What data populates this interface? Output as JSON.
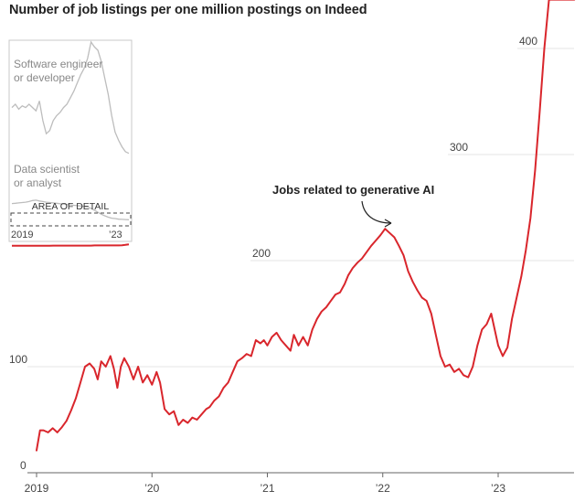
{
  "title": "Number of job listings per one million postings on Indeed",
  "chart_data": {
    "type": "line",
    "title": "Number of job listings per one million postings on Indeed",
    "xlabel": "",
    "ylabel": "",
    "ylim": [
      0,
      450
    ],
    "y_ticks": [
      {
        "value": 0,
        "label": "0"
      },
      {
        "value": 100,
        "label": "100"
      },
      {
        "value": 200,
        "label": "200"
      },
      {
        "value": 300,
        "label": "300"
      },
      {
        "value": 400,
        "label": "400"
      }
    ],
    "x_ticks": [
      {
        "value": 2019,
        "label": "2019"
      },
      {
        "value": 2020,
        "label": "’20"
      },
      {
        "value": 2021,
        "label": "’21"
      },
      {
        "value": 2022,
        "label": "’22"
      },
      {
        "value": 2023,
        "label": "’23"
      }
    ],
    "xlim": [
      2018.9,
      2023.72
    ],
    "grid": "horizontal",
    "color": "#d9262c",
    "annotation": {
      "text": "Jobs related to generative AI",
      "x": 2022.17,
      "y": 226
    },
    "series": [
      {
        "x": [
          2019.0,
          2019.03,
          2019.06,
          2019.1,
          2019.14,
          2019.18,
          2019.22,
          2019.26,
          2019.3,
          2019.34,
          2019.38,
          2019.42,
          2019.46,
          2019.5,
          2019.53,
          2019.56,
          2019.6,
          2019.64,
          2019.67,
          2019.7,
          2019.73,
          2019.76,
          2019.8,
          2019.84,
          2019.88,
          2019.92,
          2019.96,
          2020.0,
          2020.04,
          2020.07,
          2020.11,
          2020.15,
          2020.19,
          2020.23,
          2020.27,
          2020.31,
          2020.35,
          2020.39,
          2020.43,
          2020.47,
          2020.5,
          2020.54,
          2020.58,
          2020.62,
          2020.66,
          2020.7,
          2020.74,
          2020.78,
          2020.82,
          2020.86,
          2020.9,
          2020.94,
          2020.97,
          2021.0,
          2021.04,
          2021.08,
          2021.12,
          2021.16,
          2021.2,
          2021.23,
          2021.27,
          2021.31,
          2021.35,
          2021.39,
          2021.43,
          2021.47,
          2021.51,
          2021.55,
          2021.59,
          2021.63,
          2021.67,
          2021.7,
          2021.74,
          2021.78,
          2021.82,
          2021.86,
          2021.9,
          2021.94,
          2021.98,
          2022.02,
          2022.06,
          2022.1,
          2022.14,
          2022.18,
          2022.22,
          2022.26,
          2022.3,
          2022.34,
          2022.38,
          2022.42,
          2022.46,
          2022.5,
          2022.54,
          2022.58,
          2022.62,
          2022.66,
          2022.7,
          2022.74,
          2022.78,
          2022.82,
          2022.86,
          2022.9,
          2022.94,
          2022.97,
          2023.0,
          2023.04,
          2023.08,
          2023.12,
          2023.16,
          2023.2,
          2023.24,
          2023.28,
          2023.32,
          2023.36,
          2023.4,
          2023.44,
          2023.48,
          2023.52,
          2023.56,
          2023.6,
          2023.62,
          2023.64,
          2023.66
        ],
        "values": [
          21,
          40,
          40,
          38,
          42,
          38,
          43,
          49,
          59,
          70,
          85,
          100,
          103,
          98,
          88,
          105,
          100,
          110,
          98,
          80,
          100,
          108,
          100,
          88,
          100,
          85,
          92,
          83,
          95,
          85,
          60,
          55,
          58,
          45,
          50,
          47,
          52,
          50,
          55,
          60,
          62,
          68,
          72,
          80,
          85,
          95,
          105,
          108,
          112,
          110,
          125,
          122,
          125,
          120,
          128,
          132,
          125,
          120,
          115,
          130,
          120,
          128,
          120,
          135,
          145,
          152,
          156,
          162,
          168,
          170,
          178,
          186,
          193,
          198,
          202,
          208,
          214,
          219,
          224,
          230,
          226,
          222,
          214,
          205,
          190,
          180,
          172,
          165,
          162,
          150,
          130,
          110,
          100,
          102,
          95,
          98,
          92,
          90,
          100,
          120,
          135,
          140,
          150,
          135,
          120,
          110,
          118,
          145,
          165,
          185,
          210,
          240,
          285,
          340,
          400,
          446,
          446,
          446,
          446,
          446,
          446,
          446,
          446
        ],
        "name": ""
      }
    ]
  },
  "inset": {
    "label_a_line1": "Software engineer",
    "label_a_line2": "or developer",
    "label_b_line1": "Data scientist",
    "label_b_line2": "or analyst",
    "area_label": "AREA OF DETAIL",
    "tick_left": "2019",
    "tick_right": "’23",
    "software_engineer": [
      0.6,
      0.62,
      0.59,
      0.61,
      0.6,
      0.62,
      0.6,
      0.58,
      0.64,
      0.52,
      0.44,
      0.46,
      0.52,
      0.55,
      0.57,
      0.6,
      0.62,
      0.66,
      0.7,
      0.75,
      0.8,
      0.84,
      0.9,
      1.0,
      0.97,
      0.95,
      0.88,
      0.78,
      0.68,
      0.55,
      0.45,
      0.4,
      0.36,
      0.33,
      0.32
    ],
    "data_scientist": [
      0.175,
      0.176,
      0.178,
      0.18,
      0.182,
      0.185,
      0.19,
      0.192,
      0.188,
      0.185,
      0.182,
      0.18,
      0.178,
      0.176,
      0.174,
      0.172,
      0.17,
      0.168,
      0.166,
      0.164,
      0.162,
      0.16,
      0.158,
      0.15,
      0.14,
      0.13,
      0.12,
      0.112,
      0.105,
      0.1,
      0.098,
      0.095,
      0.094,
      0.093,
      0.092
    ],
    "genai": [
      0.03,
      0.03,
      0.03,
      0.03,
      0.03,
      0.03,
      0.03,
      0.03,
      0.03,
      0.03,
      0.03,
      0.03,
      0.035,
      0.035,
      0.035,
      0.035,
      0.035,
      0.035,
      0.035,
      0.035,
      0.035,
      0.035,
      0.035,
      0.035,
      0.04,
      0.04,
      0.04,
      0.04,
      0.04,
      0.04,
      0.04,
      0.04,
      0.045,
      0.055,
      0.07
    ]
  }
}
